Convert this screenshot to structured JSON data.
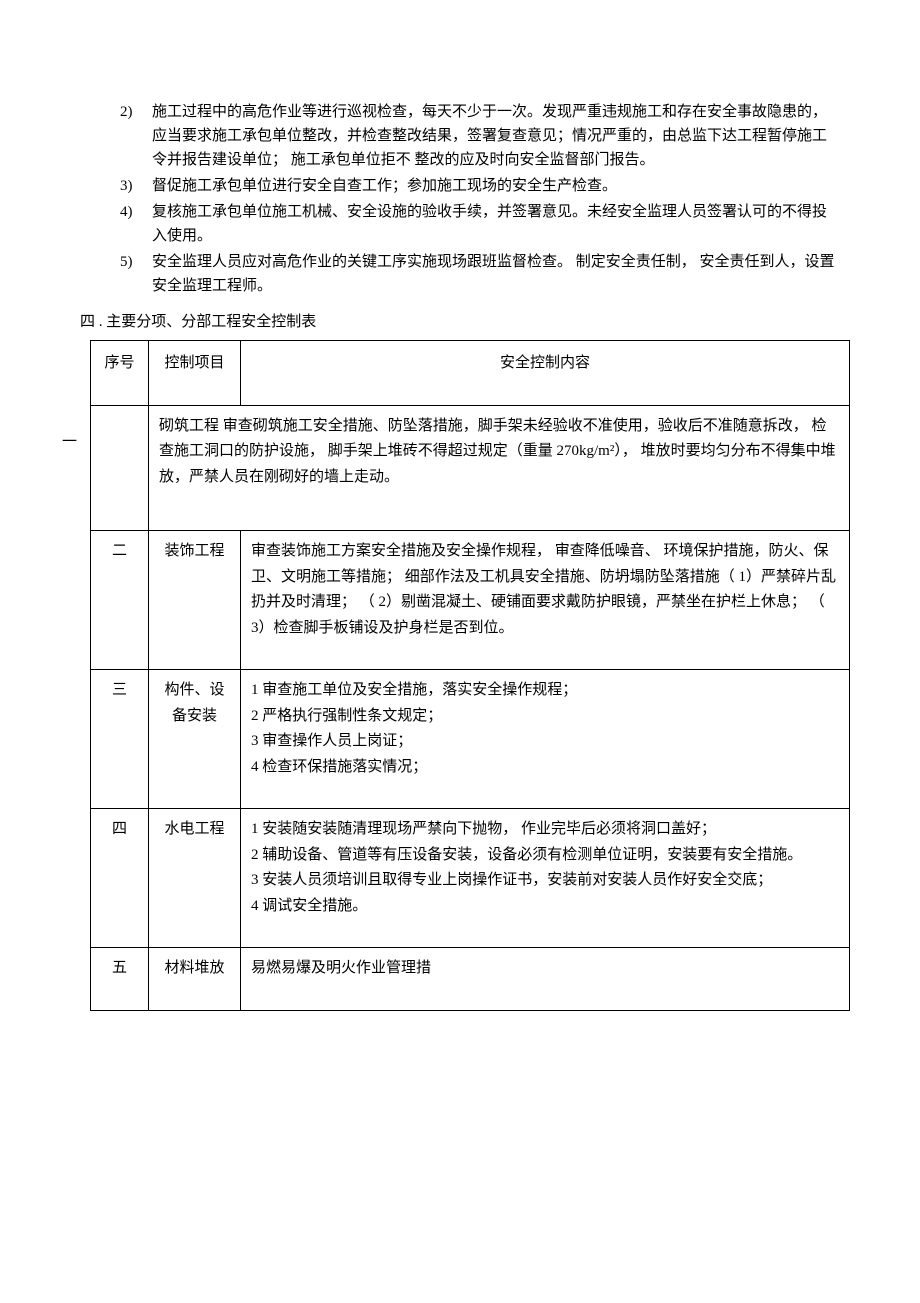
{
  "list": {
    "items": [
      {
        "marker": "2)",
        "text": "施工过程中的高危作业等进行巡视检查，每天不少于一次。发现严重违规施工和存在安全事故隐患的，应当要求施工承包单位整改，并检查整改结果，签署复查意见；情况严重的，由总监下达工程暂停施工令并报告建设单位；  施工承包单位拒不  整改的应及时向安全监督部门报告。"
      },
      {
        "marker": "3)",
        "text": "督促施工承包单位进行安全自查工作；参加施工现场的安全生产检查。"
      },
      {
        "marker": "4)",
        "text": "复核施工承包单位施工机械、安全设施的验收手续，并签署意见。未经安全监理人员签署认可的不得投入使用。"
      },
      {
        "marker": "5)",
        "text": "安全监理人员应对高危作业的关键工序实施现场跟班监督检查。        制定安全责任制，  安全责任到人，设置安全监理工程师。"
      }
    ]
  },
  "section_heading": "四 . 主要分项、分部工程安全控制表",
  "side_marker": "一",
  "table": {
    "headers": {
      "seq": "序号",
      "item": "控制项目",
      "content": "安全控制内容"
    },
    "rows": [
      {
        "seq": "",
        "item_prefix": "砌筑工程",
        "content": "审查砌筑施工安全措施、防坠落措施，脚手架未经验收不准使用，验收后不准随意拆改，  检查施工洞口的防护设施，  脚手架上堆砖不得超过规定（重量 270kg/m²）， 堆放时要均匀分布不得集中堆放，严禁人员在刚砌好的墙上走动。"
      },
      {
        "seq": "二",
        "item": "装饰工程",
        "content": "审查装饰施工方案安全措施及安全操作规程，  审查降低噪音、  环境保护措施，防火、保卫、文明施工等措施；  细部作法及工机具安全措施、防坍塌防坠落措施（ 1）严禁碎片乱扔并及时清理；  （ 2）剔凿混凝土、硬铺面要求戴防护眼镜，严禁坐在护栏上休息；  （ 3）检查脚手板铺设及护身栏是否到位。"
      },
      {
        "seq": "三",
        "item": "构件、设备安装",
        "content": "1 审查施工单位及安全措施，落实安全操作规程；\n2 严格执行强制性条文规定；\n3 审查操作人员上岗证；\n4 检查环保措施落实情况；"
      },
      {
        "seq": "四",
        "item": "水电工程",
        "content": "1 安装随安装随清理现场严禁向下抛物，  作业完毕后必须将洞口盖好；\n2 辅助设备、管道等有压设备安装，设备必须有检测单位证明，安装要有安全措施。\n3 安装人员须培训且取得专业上岗操作证书，安装前对安装人员作好安全交底；\n4 调试安全措施。"
      },
      {
        "seq": "五",
        "item": "材料堆放",
        "content": "易燃易爆及明火作业管理措"
      }
    ]
  }
}
